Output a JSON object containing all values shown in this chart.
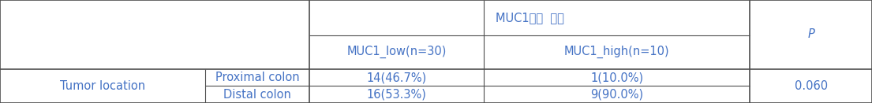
{
  "header_main": "MUC1발현  정도",
  "header_sub1": "MUC1_low(n=30)",
  "header_sub2": "MUC1_high(n=10)",
  "header_p": "P",
  "row_label_main": "Tumor location",
  "row1_sub": "Proximal colon",
  "row2_sub": "Distal colon",
  "row1_val1": "14(46.7%)",
  "row1_val2": "1(10.0%)",
  "row2_val1": "16(53.3%)",
  "row2_val2": "9(90.0%)",
  "p_value": "0.060",
  "text_color": "#4472C4",
  "border_color": "#4d4d4d",
  "bg_color": "#FFFFFF",
  "font_size": 10.5,
  "figsize": [
    11.05,
    1.31
  ],
  "dpi": 100,
  "c0": 0.0,
  "c1": 0.235,
  "c2": 0.355,
  "c3": 0.555,
  "c4": 0.735,
  "c5": 0.86,
  "c6": 1.0,
  "r0": 1.0,
  "r1": 0.66,
  "r2": 0.33,
  "r3": 0.0
}
